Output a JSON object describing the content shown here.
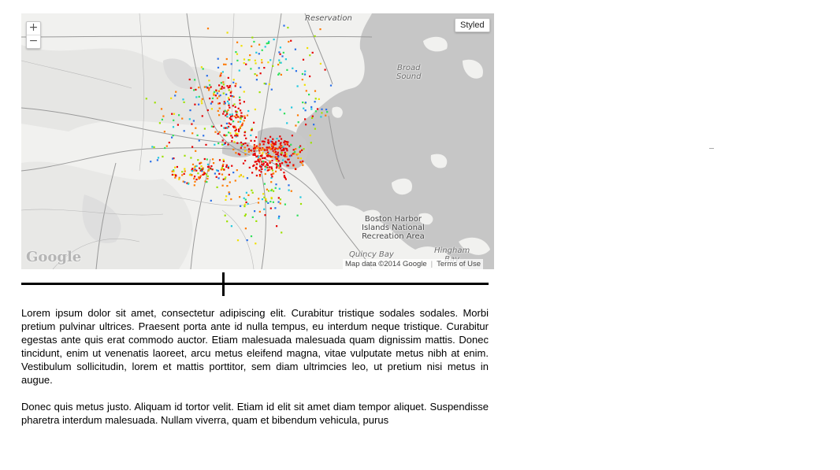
{
  "map": {
    "zoom_in_label": "+",
    "zoom_out_label": "−",
    "style_button_label": "Styled",
    "labels": {
      "reservation": "Reservation",
      "broad_sound": "Broad\nSound",
      "harbor_islands": "Boston Harbor\nIslands National\nRecreation Area",
      "quincy_bay": "Quincy Bay",
      "hingham_bay": "Hingham\nBay"
    },
    "logo_text": "Google",
    "attribution": "Map data ©2014 Google",
    "terms_link": "Terms of Use",
    "heat_colors": [
      "#e60000",
      "#ff7a00",
      "#f0e000",
      "#9de000",
      "#2ee05a",
      "#1fc9e0",
      "#2a6fe8"
    ]
  },
  "slider": {
    "value_fraction": 0.43
  },
  "body_text": {
    "paragraph_1": "Lorem ipsum dolor sit amet, consectetur adipiscing elit. Curabitur tristique sodales sodales. Morbi pretium pulvinar ultrices. Praesent porta ante id nulla tempus, eu interdum neque tristique. Curabitur egestas ante quis erat commodo auctor. Etiam malesuada malesuada quam dignissim mattis. Donec tincidunt, enim ut venenatis laoreet, arcu metus eleifend magna, vitae vulputate metus nibh at enim. Vestibulum sollicitudin, lorem et mattis porttitor, sem diam ultrimcies leo, ut pretium nisi metus in augue.",
    "paragraph_2": "Donec quis metus justo. Aliquam id tortor velit. Etiam id elit sit amet diam tempor aliquet. Suspendisse pharetra interdum malesuada. Nullam viverra, quam et bibendum vehicula, purus"
  }
}
